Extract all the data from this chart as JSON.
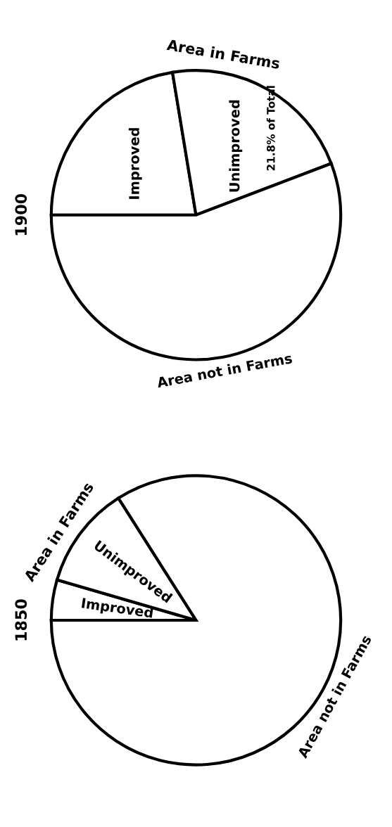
{
  "chart_data": [
    {
      "type": "pie",
      "title": "1900",
      "categories": [
        "Improved",
        "Unimproved",
        "Area not in Farms"
      ],
      "values": [
        22.4,
        21.8,
        55.8
      ],
      "colors": [
        "#ffffff",
        "#ffffff",
        "#ffffff"
      ],
      "value_labels": [
        null,
        "21.8% of Total",
        null
      ],
      "annotations": [
        "Area in Farms"
      ]
    },
    {
      "type": "pie",
      "title": "1850",
      "categories": [
        "Improved",
        "Unimproved",
        "Area not in Farms"
      ],
      "values": [
        4.5,
        11.5,
        84.0
      ],
      "colors": [
        "#ffffff",
        "#ffffff",
        "#ffffff"
      ],
      "annotations": [
        "Area in Farms"
      ]
    }
  ]
}
